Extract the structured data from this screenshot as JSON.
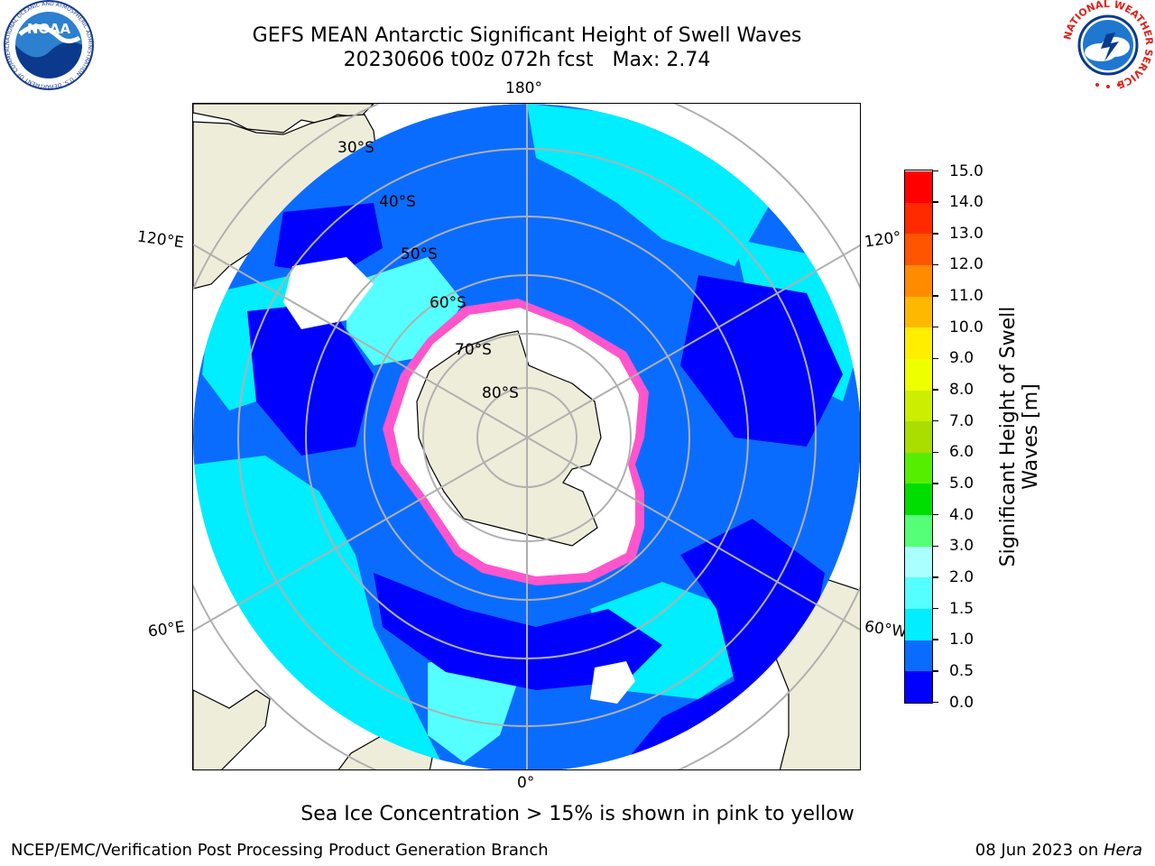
{
  "title": {
    "line1": "GEFS MEAN Antarctic Significant Height of Swell Waves",
    "line2": "20230606 t00z 072h fcst   Max: 2.74"
  },
  "logos": {
    "left": {
      "text": "NOAA",
      "ring": "NATIONAL OCEANIC AND ATMOSPHERIC ADMINISTRATION · U.S. DEPARTMENT OF COMMERCE",
      "icon": "noaa-logo"
    },
    "right": {
      "ring": "NATIONAL WEATHER SERVICE",
      "icon": "nws-logo"
    }
  },
  "map": {
    "projection": "south-polar-stereographic",
    "longitude_labels": [
      {
        "name": "lon-180",
        "text": "180°"
      },
      {
        "name": "lon-120e",
        "text": "120°E"
      },
      {
        "name": "lon-120w",
        "text": "120°"
      },
      {
        "name": "lon-60e",
        "text": "60°E"
      },
      {
        "name": "lon-60w",
        "text": "60°W"
      },
      {
        "name": "lon-0",
        "text": "0°"
      }
    ],
    "latitude_labels": [
      "30°S",
      "40°S",
      "50°S",
      "60°S",
      "70°S",
      "80°S"
    ],
    "colors": {
      "land": "#eeedda",
      "sea_ice_fill": "#ffffff",
      "sea_ice_edge": [
        "#ff66cc",
        "#ff00ff",
        "#ffd700"
      ],
      "graticule": "#b0b0b0",
      "coast": "#000000"
    }
  },
  "colorbar": {
    "title": "Significant Height of Swell Waves [m]",
    "levels": [
      "0.0",
      "0.5",
      "1.0",
      "1.5",
      "2.0",
      "3.0",
      "4.0",
      "5.0",
      "6.0",
      "7.0",
      "8.0",
      "9.0",
      "10.0",
      "11.0",
      "12.0",
      "13.0",
      "14.0",
      "15.0"
    ],
    "colors": [
      "#0000ff",
      "#0a6cff",
      "#00eeff",
      "#55ffff",
      "#aaffff",
      "#55ff77",
      "#00dd00",
      "#55ee00",
      "#aadd00",
      "#ccee00",
      "#eeff00",
      "#ffee00",
      "#ffb800",
      "#ff8c00",
      "#ff5500",
      "#ff2a00",
      "#ff0000"
    ]
  },
  "note": "Sea Ice Concentration > 15% is shown in pink to yellow",
  "footer": {
    "left": "NCEP/EMC/Verification Post Processing Product Generation Branch",
    "right_prefix": "08 Jun 2023 on ",
    "right_italic": "Hera"
  }
}
